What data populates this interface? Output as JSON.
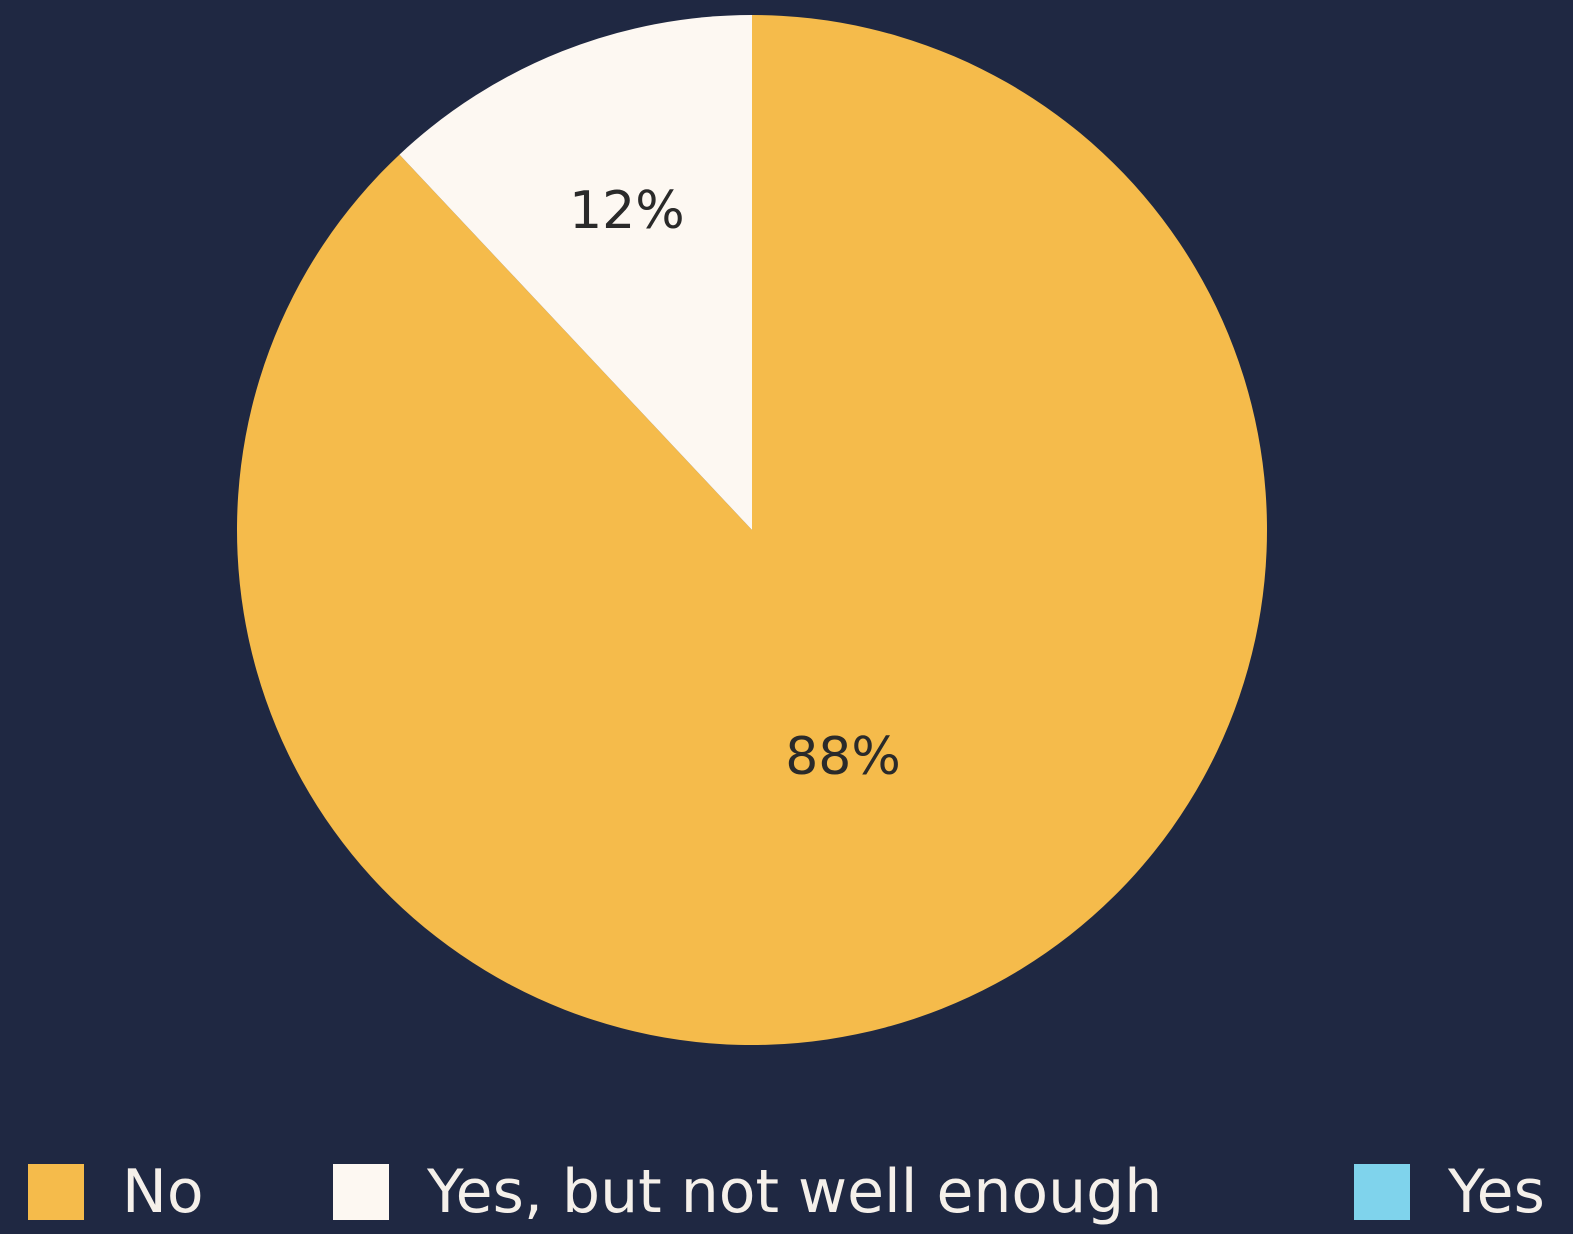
{
  "chart_data": {
    "type": "pie",
    "title": "",
    "slices": [
      {
        "label": "No",
        "value": 88,
        "display": "88%",
        "color": "#f5bb4b"
      },
      {
        "label": "Yes, but not well enough",
        "value": 12,
        "display": "12%",
        "color": "#fdf8f2"
      },
      {
        "label": "Yes",
        "value": 0,
        "display": "",
        "color": "#7fd3ec"
      }
    ],
    "legend_placement": "bottom",
    "background": "#1f2842"
  }
}
